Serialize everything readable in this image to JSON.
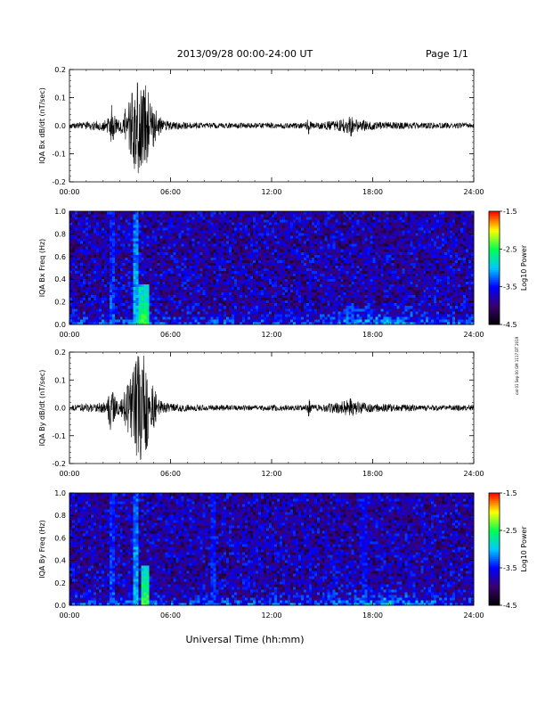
{
  "header": {
    "date_range": "2013/09/28  00:00-24:00 UT",
    "page_label": "Page 1/1"
  },
  "side_stamp": "cat 01 Sep 00 GM 1117 DT 2019",
  "footer": {
    "xlabel": "Universal Time (hh:mm)"
  },
  "colors": {
    "trace": "#000000",
    "colormap": [
      "#000000",
      "#3a0070",
      "#0000ff",
      "#00c8ff",
      "#00ff50",
      "#ffff00",
      "#ff0000"
    ]
  },
  "chart_data": [
    {
      "id": "bx_wave",
      "type": "line",
      "ylabel": "IQA Bx dB/dt (nT/sec)",
      "x_ticks": [
        "00:00",
        "06:00",
        "12:00",
        "18:00",
        "24:00"
      ],
      "xlim": [
        0,
        24
      ],
      "ylim": [
        -0.2,
        0.2
      ],
      "y_ticks": [
        "0.2",
        "0.1",
        "0.0",
        "-0.1",
        "-0.2"
      ],
      "series": [
        {
          "x": [
            0,
            2.2,
            2.5,
            2.6,
            3.0,
            3.7,
            4.0,
            4.2,
            4.4,
            4.6,
            4.8,
            5.2,
            5.5,
            6,
            8,
            10,
            12,
            14,
            14.2,
            14.4,
            16,
            16.5,
            16.7,
            17.0,
            18,
            20,
            22,
            24
          ],
          "amplitude": [
            0.01,
            0.02,
            0.08,
            0.04,
            0.02,
            0.12,
            0.19,
            0.16,
            0.2,
            0.15,
            0.1,
            0.05,
            0.02,
            0.015,
            0.01,
            0.01,
            0.01,
            0.01,
            0.03,
            0.01,
            0.02,
            0.03,
            0.04,
            0.025,
            0.015,
            0.012,
            0.01,
            0.01
          ]
        }
      ]
    },
    {
      "id": "bx_spec",
      "type": "heatmap",
      "ylabel": "IQA Bx Freq (Hz)",
      "x_ticks": [
        "00:00",
        "06:00",
        "12:00",
        "18:00",
        "24:00"
      ],
      "xlim": [
        0,
        24
      ],
      "ylim": [
        0,
        1.0
      ],
      "y_ticks": [
        "1.0",
        "0.8",
        "0.6",
        "0.4",
        "0.2",
        "0.0"
      ],
      "colorbar": {
        "label": "Log10 Power",
        "ticks": [
          "-1.5",
          "-2.5",
          "-3.5",
          "-4.5"
        ],
        "range": [
          -4.5,
          -1.5
        ]
      },
      "events": [
        {
          "t": 2.5,
          "width": 0.15,
          "fmax": 1.0,
          "power": -3.3
        },
        {
          "t": 4.0,
          "width": 0.2,
          "fmax": 1.0,
          "power": -3.0
        },
        {
          "t": 4.4,
          "width": 0.4,
          "fmax": 0.35,
          "power": -2.4
        },
        {
          "t": 14.3,
          "width": 0.1,
          "fmax": 0.5,
          "power": -3.6
        },
        {
          "t": 16.6,
          "width": 0.3,
          "fmax": 0.2,
          "power": -3.3
        }
      ],
      "background_power": -3.8
    },
    {
      "id": "by_wave",
      "type": "line",
      "ylabel": "IQA By dB/dt (nT/sec)",
      "x_ticks": [
        "00:00",
        "06:00",
        "12:00",
        "18:00",
        "24:00"
      ],
      "xlim": [
        0,
        24
      ],
      "ylim": [
        -0.2,
        0.2
      ],
      "y_ticks": [
        "0.2",
        "0.1",
        "0.0",
        "-0.1",
        "-0.2"
      ],
      "series": [
        {
          "x": [
            0,
            2.2,
            2.5,
            2.6,
            3.0,
            3.7,
            4.0,
            4.2,
            4.4,
            4.6,
            4.8,
            5.2,
            5.5,
            6,
            8,
            10,
            12,
            14,
            14.2,
            14.4,
            16,
            16.5,
            16.7,
            17.0,
            18,
            20,
            22,
            24
          ],
          "amplitude": [
            0.01,
            0.02,
            0.1,
            0.05,
            0.02,
            0.12,
            0.18,
            0.2,
            0.2,
            0.17,
            0.1,
            0.05,
            0.02,
            0.015,
            0.01,
            0.01,
            0.01,
            0.01,
            0.035,
            0.01,
            0.02,
            0.03,
            0.04,
            0.025,
            0.015,
            0.012,
            0.01,
            0.01
          ]
        }
      ]
    },
    {
      "id": "by_spec",
      "type": "heatmap",
      "ylabel": "IQA By Freq (Hz)",
      "x_ticks": [
        "00:00",
        "06:00",
        "12:00",
        "18:00",
        "24:00"
      ],
      "xlim": [
        0,
        24
      ],
      "ylim": [
        0,
        1.0
      ],
      "y_ticks": [
        "1.0",
        "0.8",
        "0.6",
        "0.4",
        "0.2",
        "0.0"
      ],
      "colorbar": {
        "label": "Log10 Power",
        "ticks": [
          "-1.5",
          "-2.5",
          "-3.5",
          "-4.5"
        ],
        "range": [
          -4.5,
          -1.5
        ]
      },
      "events": [
        {
          "t": 2.5,
          "width": 0.15,
          "fmax": 1.0,
          "power": -3.3
        },
        {
          "t": 4.0,
          "width": 0.2,
          "fmax": 1.0,
          "power": -3.0
        },
        {
          "t": 4.5,
          "width": 0.4,
          "fmax": 0.35,
          "power": -2.4
        },
        {
          "t": 8.5,
          "width": 0.1,
          "fmax": 1.0,
          "power": -3.4
        },
        {
          "t": 14.3,
          "width": 0.1,
          "fmax": 0.5,
          "power": -3.6
        },
        {
          "t": 17.5,
          "width": 0.1,
          "fmax": 1.0,
          "power": -3.5
        }
      ],
      "background_power": -3.8
    }
  ]
}
